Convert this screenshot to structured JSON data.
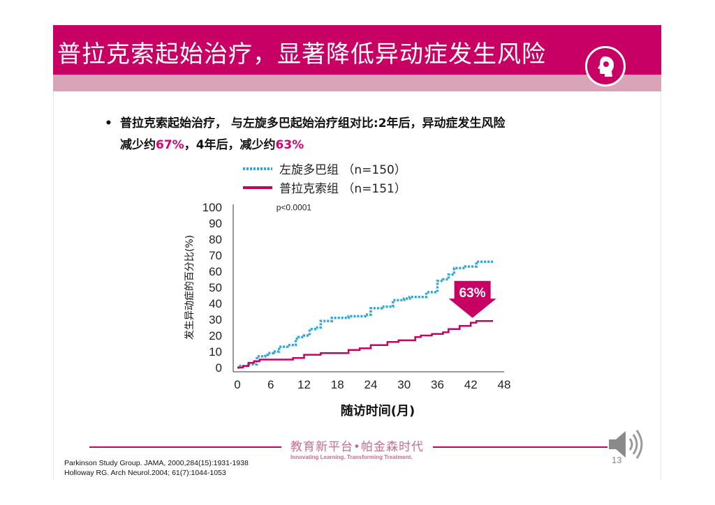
{
  "slide": {
    "title": "普拉克索起始治疗，显著降低异动症发生风险",
    "bullet": {
      "marker": "•",
      "line1": "普拉克索起始治疗，  与左旋多巴起始治疗组对比:2年后，异动症发生风险",
      "line2_a": "减少约",
      "line2_b": "67%",
      "line2_c": "，4年后，减少约",
      "line2_d": "63%"
    },
    "footer": {
      "brand": "教育新平台•帕金森时代",
      "tagline": "Innovating Learning. Transforming Treatment.",
      "page_number": "13"
    },
    "references": [
      "Parkinson Study Group. JAMA, 2000,284(15):1931-1938",
      "Holloway RG. Arch Neurol.2004; 61(7):1044-1053"
    ],
    "icons": {
      "logo": "head-icon",
      "audio": "speaker-icon"
    }
  },
  "chart_data": {
    "type": "line",
    "step": true,
    "xlabel": "随访时间(月)",
    "ylabel": "发生异动症的百分比(%)",
    "xlim": [
      0,
      48
    ],
    "ylim": [
      0,
      100
    ],
    "xticks": [
      0,
      6,
      12,
      18,
      24,
      30,
      36,
      42,
      48
    ],
    "yticks": [
      0,
      10,
      20,
      30,
      40,
      50,
      60,
      70,
      80,
      90,
      100
    ],
    "annotation": "p<0.0001",
    "reduction_label": "63%",
    "series": [
      {
        "name": "左旋多巴组 （n=150）",
        "color": "#2aa7dc",
        "style": "dotted",
        "points": [
          [
            0,
            0
          ],
          [
            0.5,
            1
          ],
          [
            1.5,
            1
          ],
          [
            2,
            2
          ],
          [
            3,
            2
          ],
          [
            3.5,
            7
          ],
          [
            5,
            8
          ],
          [
            5.5,
            9
          ],
          [
            6.5,
            10
          ],
          [
            7.5,
            13
          ],
          [
            9,
            14
          ],
          [
            10,
            14
          ],
          [
            10.5,
            18
          ],
          [
            11,
            19
          ],
          [
            12,
            20
          ],
          [
            13,
            24
          ],
          [
            14,
            25
          ],
          [
            15,
            29
          ],
          [
            17,
            31
          ],
          [
            18,
            31
          ],
          [
            20,
            32
          ],
          [
            21,
            32
          ],
          [
            22,
            32
          ],
          [
            23,
            33
          ],
          [
            24,
            37
          ],
          [
            26,
            38
          ],
          [
            27,
            38
          ],
          [
            28,
            42
          ],
          [
            30,
            43
          ],
          [
            31,
            44
          ],
          [
            33,
            44
          ],
          [
            34,
            47
          ],
          [
            35,
            47
          ],
          [
            36,
            54
          ],
          [
            37,
            55
          ],
          [
            38,
            58
          ],
          [
            39,
            62
          ],
          [
            40,
            62
          ],
          [
            41,
            63
          ],
          [
            42,
            63
          ],
          [
            43,
            66
          ],
          [
            44,
            66
          ],
          [
            46,
            66
          ]
        ]
      },
      {
        "name": "普拉克索组 （n=151）",
        "color": "#c80064",
        "style": "solid",
        "points": [
          [
            0,
            0
          ],
          [
            1,
            1
          ],
          [
            2,
            3
          ],
          [
            3,
            4
          ],
          [
            4,
            5
          ],
          [
            6,
            5
          ],
          [
            8,
            5
          ],
          [
            10,
            6
          ],
          [
            12,
            8
          ],
          [
            14,
            8
          ],
          [
            15,
            9
          ],
          [
            18,
            9
          ],
          [
            20,
            11
          ],
          [
            22,
            12
          ],
          [
            24,
            14
          ],
          [
            26,
            14
          ],
          [
            27,
            16
          ],
          [
            29,
            17
          ],
          [
            32,
            19
          ],
          [
            33,
            20
          ],
          [
            35,
            21
          ],
          [
            37,
            22
          ],
          [
            38,
            24
          ],
          [
            40,
            26
          ],
          [
            42,
            28
          ],
          [
            43,
            29
          ],
          [
            44,
            29
          ],
          [
            46,
            29
          ]
        ]
      }
    ]
  }
}
